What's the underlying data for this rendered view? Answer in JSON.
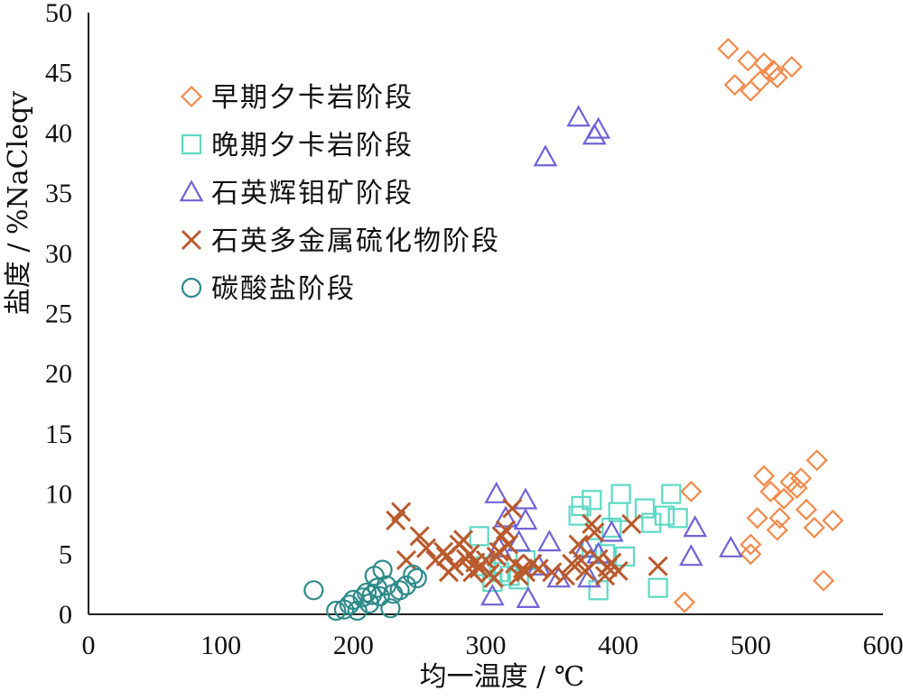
{
  "chart_data": {
    "type": "scatter",
    "xlabel": "均一温度 / ℃",
    "ylabel": "盐度 / %NaCleqv",
    "xlim": [
      0,
      600
    ],
    "ylim": [
      0,
      50
    ],
    "xticks": [
      "0",
      "100",
      "200",
      "300",
      "400",
      "500",
      "600"
    ],
    "yticks": [
      "0",
      "5",
      "10",
      "15",
      "20",
      "25",
      "30",
      "35",
      "40",
      "45",
      "50"
    ],
    "grid": false,
    "legend_position": "top-left",
    "series": [
      {
        "name": "早期夕卡岩阶段",
        "marker": "diamond",
        "color": "#F28A4B",
        "points": [
          [
            483,
            47
          ],
          [
            488,
            44
          ],
          [
            498,
            46
          ],
          [
            500,
            43.5
          ],
          [
            507,
            44.3
          ],
          [
            510,
            45.8
          ],
          [
            517,
            45.2
          ],
          [
            520,
            44.6
          ],
          [
            531,
            45.5
          ],
          [
            455,
            10.2
          ],
          [
            450,
            1
          ],
          [
            500,
            5
          ],
          [
            500,
            5.8
          ],
          [
            505,
            8
          ],
          [
            510,
            11.5
          ],
          [
            515,
            10.2
          ],
          [
            520,
            7
          ],
          [
            522,
            8
          ],
          [
            525,
            9.6
          ],
          [
            530,
            11
          ],
          [
            535,
            10.5
          ],
          [
            538,
            11.3
          ],
          [
            542,
            8.7
          ],
          [
            548,
            7.2
          ],
          [
            550,
            12.8
          ],
          [
            555,
            2.8
          ],
          [
            562,
            7.8
          ]
        ]
      },
      {
        "name": "晚期夕卡岩阶段",
        "marker": "square",
        "color": "#5DD9C5",
        "points": [
          [
            295,
            6.5
          ],
          [
            300,
            4
          ],
          [
            305,
            2.7
          ],
          [
            310,
            3.5
          ],
          [
            318,
            3.2
          ],
          [
            325,
            2.9
          ],
          [
            330,
            4.5
          ],
          [
            370,
            8.2
          ],
          [
            372,
            9
          ],
          [
            380,
            9.5
          ],
          [
            380,
            5.5
          ],
          [
            385,
            2
          ],
          [
            390,
            5
          ],
          [
            395,
            7.2
          ],
          [
            400,
            8.5
          ],
          [
            402,
            10
          ],
          [
            405,
            4.8
          ],
          [
            420,
            8.8
          ],
          [
            425,
            7.6
          ],
          [
            430,
            2.2
          ],
          [
            435,
            8.2
          ],
          [
            440,
            10
          ],
          [
            445,
            8
          ]
        ]
      },
      {
        "name": "石英辉钼矿阶段",
        "marker": "triangle",
        "color": "#6F63D6",
        "points": [
          [
            305,
            1.5
          ],
          [
            308,
            10
          ],
          [
            310,
            5.5
          ],
          [
            315,
            8
          ],
          [
            325,
            6
          ],
          [
            330,
            7.8
          ],
          [
            330,
            9.5
          ],
          [
            332,
            1.3
          ],
          [
            340,
            4
          ],
          [
            345,
            38
          ],
          [
            348,
            6
          ],
          [
            355,
            3
          ],
          [
            370,
            41.3
          ],
          [
            375,
            5.5
          ],
          [
            378,
            3
          ],
          [
            382,
            39.8
          ],
          [
            385,
            40.3
          ],
          [
            385,
            5
          ],
          [
            395,
            6.8
          ],
          [
            455,
            4.8
          ],
          [
            458,
            7.2
          ],
          [
            485,
            5.5
          ]
        ]
      },
      {
        "name": "石英多金属硫化物阶段",
        "marker": "cross",
        "color": "#B95A2D",
        "points": [
          [
            232,
            7.8
          ],
          [
            236,
            8.5
          ],
          [
            240,
            4.5
          ],
          [
            250,
            6.5
          ],
          [
            255,
            5.5
          ],
          [
            262,
            4.5
          ],
          [
            268,
            5.2
          ],
          [
            270,
            4.8
          ],
          [
            272,
            3.5
          ],
          [
            276,
            4
          ],
          [
            280,
            5.8
          ],
          [
            283,
            6.2
          ],
          [
            285,
            4.6
          ],
          [
            288,
            5
          ],
          [
            290,
            3.5
          ],
          [
            292,
            4.3
          ],
          [
            295,
            3.8
          ],
          [
            300,
            4.5
          ],
          [
            303,
            3.4
          ],
          [
            306,
            3
          ],
          [
            308,
            4.8
          ],
          [
            310,
            5.2
          ],
          [
            312,
            6.5
          ],
          [
            315,
            7
          ],
          [
            317,
            5.8
          ],
          [
            320,
            8.8
          ],
          [
            322,
            4.2
          ],
          [
            325,
            3.2
          ],
          [
            328,
            3.8
          ],
          [
            330,
            3.5
          ],
          [
            335,
            4.2
          ],
          [
            340,
            3.8
          ],
          [
            350,
            3.5
          ],
          [
            360,
            3.2
          ],
          [
            365,
            4.2
          ],
          [
            370,
            5.8
          ],
          [
            372,
            4.5
          ],
          [
            375,
            3.6
          ],
          [
            380,
            7.5
          ],
          [
            382,
            6.8
          ],
          [
            385,
            4.6
          ],
          [
            390,
            3.2
          ],
          [
            392,
            3.9
          ],
          [
            395,
            4.3
          ],
          [
            400,
            3.6
          ],
          [
            410,
            7.5
          ],
          [
            430,
            4
          ]
        ]
      },
      {
        "name": "碳酸盐阶段",
        "marker": "circle",
        "color": "#2E8A8A",
        "points": [
          [
            170,
            2
          ],
          [
            187,
            0.3
          ],
          [
            193,
            0.4
          ],
          [
            197,
            0.8
          ],
          [
            200,
            1.2
          ],
          [
            203,
            0.3
          ],
          [
            207,
            1.4
          ],
          [
            210,
            1.8
          ],
          [
            212,
            0.9
          ],
          [
            214,
            1.6
          ],
          [
            216,
            3.2
          ],
          [
            218,
            2.2
          ],
          [
            220,
            1.5
          ],
          [
            222,
            3.7
          ],
          [
            225,
            2.4
          ],
          [
            228,
            0.5
          ],
          [
            230,
            1.7
          ],
          [
            235,
            2
          ],
          [
            240,
            2.4
          ],
          [
            245,
            3.3
          ],
          [
            248,
            3
          ]
        ]
      }
    ]
  }
}
